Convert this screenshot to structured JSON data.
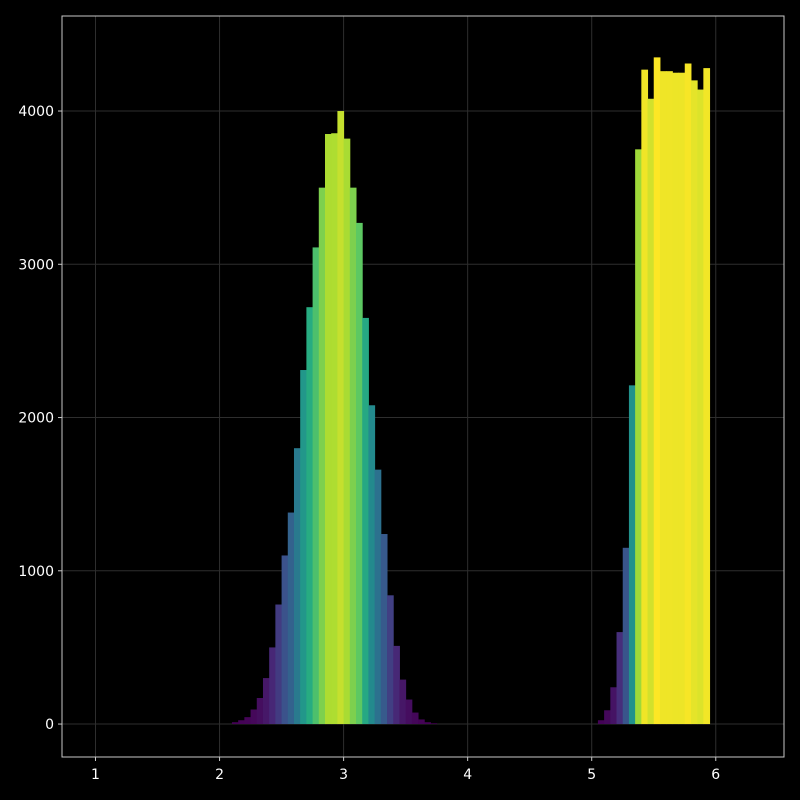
{
  "chart_data": {
    "type": "bar",
    "title": "",
    "xlabel": "",
    "ylabel": "",
    "xlim": [
      0.73,
      6.55
    ],
    "ylim": [
      -215,
      4620
    ],
    "xticks": [
      1,
      2,
      3,
      4,
      5,
      6
    ],
    "yticks": [
      0,
      1000,
      2000,
      3000,
      4000
    ],
    "grid": true,
    "colormap": "viridis",
    "background": "#000000",
    "axis_color": "#c8c8c8",
    "grid_color": "#2e2e2e",
    "tick_label_color": "#ffffff",
    "bin_width": 0.05,
    "bin_start": 2.0,
    "values": [
      0,
      0,
      12,
      25,
      45,
      95,
      170,
      300,
      500,
      780,
      1100,
      1380,
      1800,
      2310,
      2720,
      3110,
      3500,
      3850,
      3855,
      4000,
      3820,
      3500,
      3270,
      2650,
      2080,
      1660,
      1240,
      840,
      510,
      290,
      160,
      75,
      30,
      12,
      5,
      0,
      0,
      0,
      0,
      0,
      0,
      0,
      0,
      0,
      0,
      0,
      0,
      0,
      0,
      0,
      0,
      0,
      0,
      0,
      0,
      0,
      0,
      0,
      0,
      0,
      0,
      25,
      90,
      240,
      600,
      1150,
      2210,
      3750,
      4270,
      4080,
      4350,
      4260,
      4260,
      4250,
      4250,
      4310,
      4200,
      4140,
      4280,
      0
    ]
  }
}
